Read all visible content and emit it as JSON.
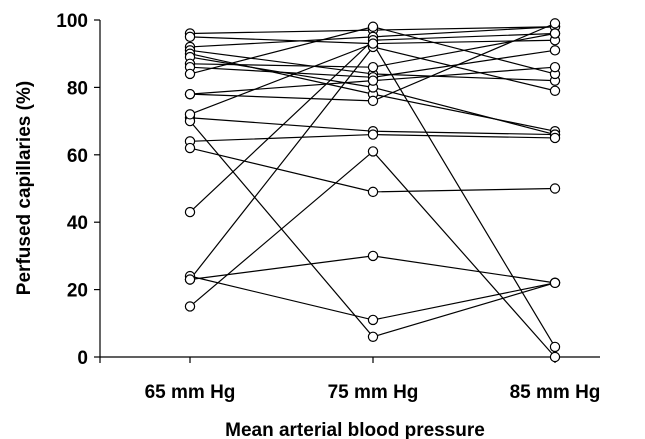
{
  "chart_data": {
    "type": "line",
    "xlabel": "Mean arterial blood pressure",
    "ylabel": "Perfused capillaries (%)",
    "categories": [
      "65 mm Hg",
      "75 mm Hg",
      "85 mm Hg"
    ],
    "ylim": [
      0,
      100
    ],
    "yticks": [
      0,
      20,
      40,
      60,
      80,
      100
    ],
    "grid": false,
    "line_color": "#000000",
    "marker_fill": "#ffffff",
    "series": [
      {
        "values": [
          96,
          97,
          98
        ]
      },
      {
        "values": [
          95,
          93,
          94
        ]
      },
      {
        "values": [
          92,
          95,
          98
        ]
      },
      {
        "values": [
          91,
          84,
          82
        ]
      },
      {
        "values": [
          90,
          78,
          67
        ]
      },
      {
        "values": [
          89,
          80,
          66
        ]
      },
      {
        "values": [
          87,
          86,
          96
        ]
      },
      {
        "values": [
          86,
          83,
          91
        ]
      },
      {
        "values": [
          84,
          98,
          84
        ]
      },
      {
        "values": [
          78,
          76,
          99
        ]
      },
      {
        "values": [
          78,
          82,
          86
        ]
      },
      {
        "values": [
          71,
          67,
          66
        ]
      },
      {
        "values": [
          70,
          6,
          22
        ]
      },
      {
        "values": [
          64,
          66,
          65
        ]
      },
      {
        "values": [
          62,
          49,
          50
        ]
      },
      {
        "values": [
          43,
          94,
          96
        ]
      },
      {
        "values": [
          23,
          92,
          79
        ]
      },
      {
        "values": [
          24,
          11,
          22
        ]
      },
      {
        "values": [
          23,
          30,
          22
        ]
      },
      {
        "values": [
          15,
          61,
          0
        ]
      },
      {
        "values": [
          72,
          93,
          3
        ]
      }
    ]
  }
}
